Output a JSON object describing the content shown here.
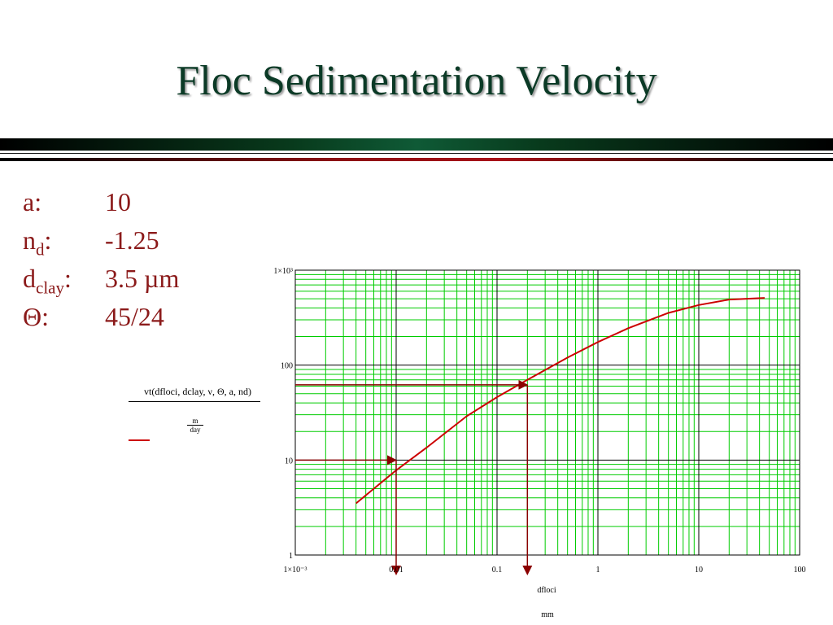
{
  "title": "Floc Sedimentation Velocity",
  "parameters": [
    {
      "name": "a",
      "sub": "",
      "value": "10"
    },
    {
      "name": "n",
      "sub": "d",
      "value": "-1.25"
    },
    {
      "name": "d",
      "sub": "clay",
      "value": "3.5 µm"
    },
    {
      "name": "Θ",
      "sub": "",
      "value": "45/24"
    }
  ],
  "legend": {
    "expression": "vt(dfloci, dclay, ν, Θ, a, nd)",
    "unit_num": "m",
    "unit_den": "day",
    "color": "#cc0000"
  },
  "colors": {
    "title": "#0b3a26",
    "params": "#8b1a1a",
    "grid_major": "#000000",
    "grid_minor": "#00cc00",
    "curve": "#cc0000",
    "guide": "#8b0000"
  },
  "chart_data": {
    "type": "line",
    "xscale": "log",
    "yscale": "log",
    "xlim": [
      0.001,
      100
    ],
    "ylim": [
      1,
      1000
    ],
    "xticks": [
      "1×10⁻³",
      "0.01",
      "0.1",
      "1",
      "10",
      "100"
    ],
    "yticks": [
      "1×10³",
      "100",
      "10",
      "1"
    ],
    "xlabel": "dfloci",
    "xunit": "mm",
    "ylabel": "",
    "grid": true,
    "series": [
      {
        "x": [
          0.004,
          0.006,
          0.01,
          0.02,
          0.05,
          0.1,
          0.2,
          0.5,
          1,
          2,
          5,
          10,
          20,
          45
        ],
        "y": [
          3.5,
          5.0,
          7.8,
          13.5,
          29,
          46,
          70,
          120,
          175,
          245,
          355,
          430,
          490,
          510
        ]
      }
    ],
    "guides": [
      {
        "x": 0.01,
        "y": 10
      },
      {
        "x": 0.2,
        "y": 62
      }
    ]
  }
}
